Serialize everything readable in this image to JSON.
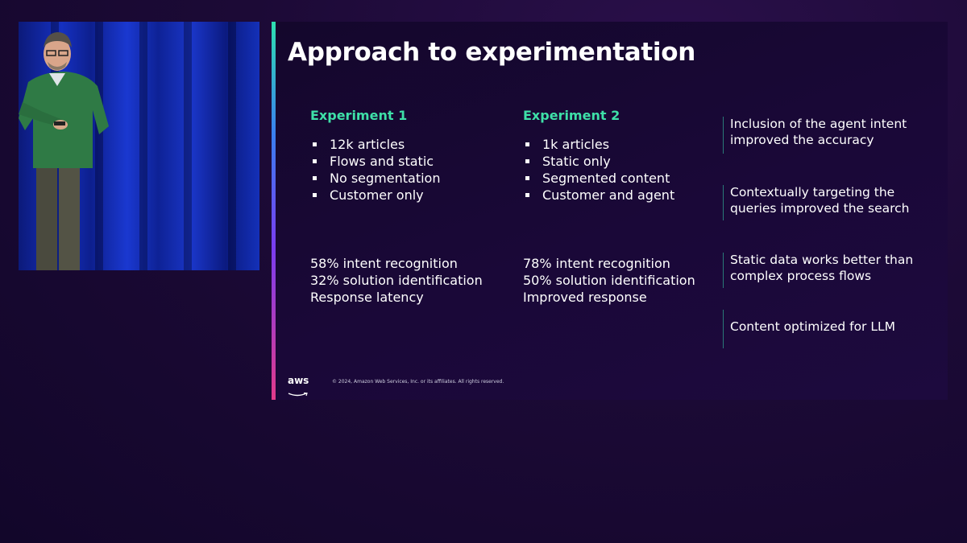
{
  "slide": {
    "title": "Approach to experimentation",
    "experiments": [
      {
        "heading": "Experiment 1",
        "bullets": [
          "12k articles",
          "Flows and static",
          "No segmentation",
          "Customer only"
        ],
        "results": [
          "58% intent recognition",
          "32% solution identification",
          "Response latency"
        ]
      },
      {
        "heading": "Experiment 2",
        "bullets": [
          "1k articles",
          "Static only",
          "Segmented content",
          "Customer and agent"
        ],
        "results": [
          "78% intent recognition",
          "50% solution identification",
          "Improved response"
        ]
      }
    ],
    "insights": [
      "Inclusion of the agent intent improved the accuracy",
      "Contextually targeting the queries improved the search",
      "Static data works better than complex process flows",
      "Content optimized for LLM"
    ],
    "logo_text": "aws",
    "footer": "© 2024, Amazon Web Services, Inc. or its affiliates. All rights reserved."
  },
  "colors": {
    "accent_green": "#3ee0a8",
    "background": "#1c0a36",
    "text": "#ffffff"
  }
}
